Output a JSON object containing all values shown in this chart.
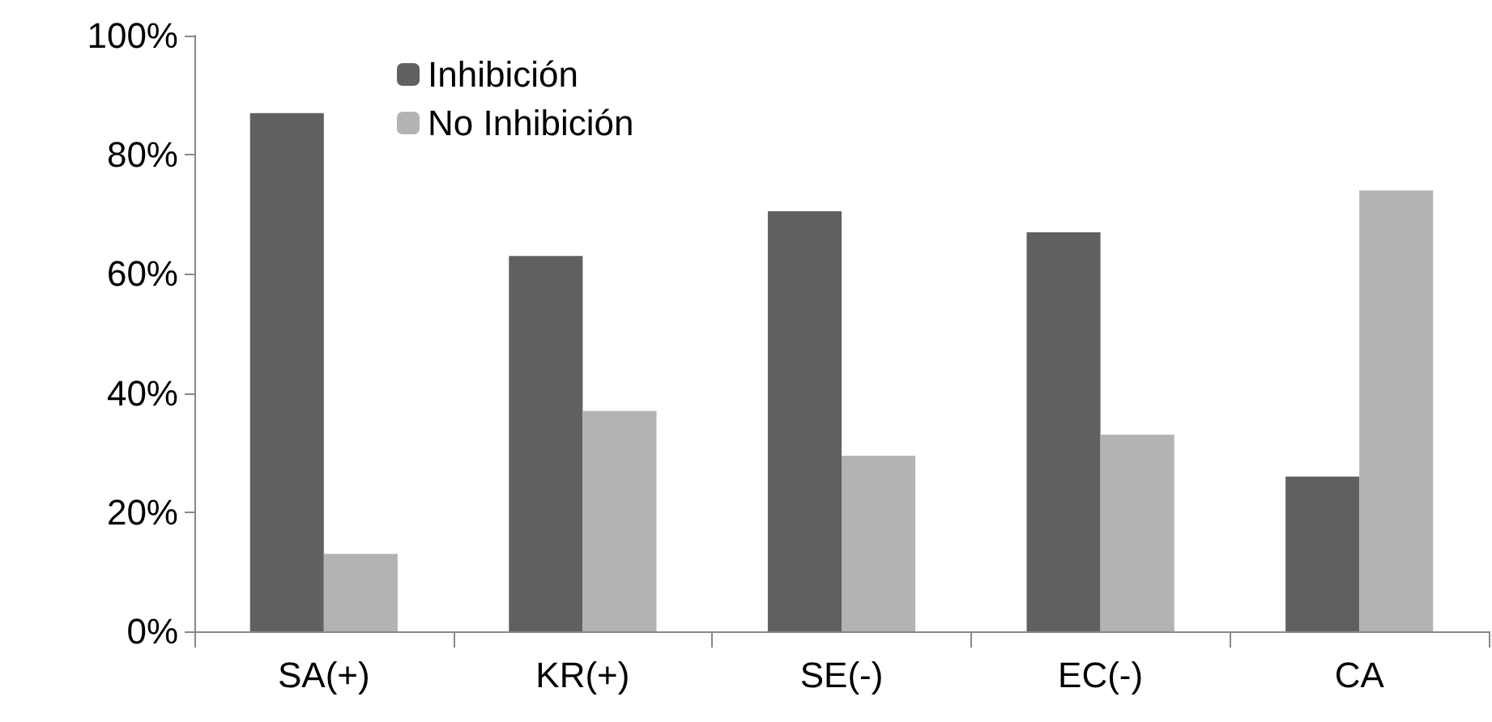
{
  "chart_data": {
    "type": "bar",
    "categories": [
      "SA(+)",
      "KR(+)",
      "SE(-)",
      "EC(-)",
      "CA"
    ],
    "series": [
      {
        "name": "Inhibición",
        "color": "#606060",
        "values": [
          87,
          63,
          70.5,
          67,
          26
        ]
      },
      {
        "name": "No Inhibición",
        "color": "#b3b3b3",
        "values": [
          13,
          37,
          29.5,
          33,
          74
        ]
      }
    ],
    "ylim": [
      0,
      100
    ],
    "yticks": [
      {
        "value": 0,
        "label": "0%"
      },
      {
        "value": 20,
        "label": "20%"
      },
      {
        "value": 40,
        "label": "40%"
      },
      {
        "value": 60,
        "label": "60%"
      },
      {
        "value": 80,
        "label": "80%"
      },
      {
        "value": 100,
        "label": "100%"
      }
    ],
    "grid": false,
    "legend": "top left"
  }
}
